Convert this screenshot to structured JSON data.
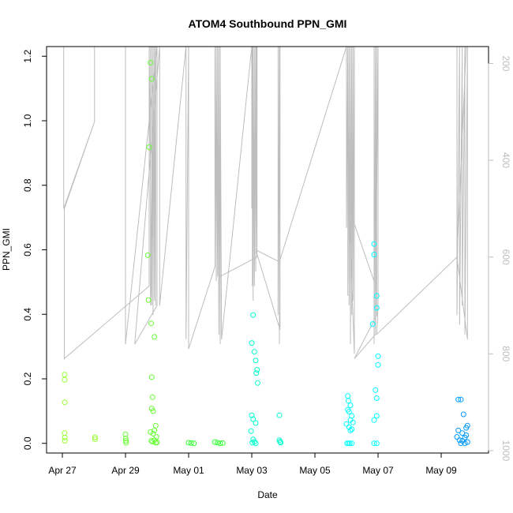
{
  "chart_data": {
    "type": "scatter",
    "title": "ATOM4 Southbound PPN_GMI",
    "xlabel": "Date",
    "ylabel": "PPN_GMI",
    "xlim": [
      "2015-04-26T12:00",
      "2015-05-10T12:00"
    ],
    "ylim": [
      -0.03,
      1.23
    ],
    "x_ticks": [
      "Apr 27",
      "Apr 29",
      "May 01",
      "May 03",
      "May 05",
      "May 07",
      "May 09"
    ],
    "x_tick_dates": [
      "2015-04-27T00:00",
      "2015-04-29T00:00",
      "2015-05-01T00:00",
      "2015-05-03T00:00",
      "2015-05-05T00:00",
      "2015-05-07T00:00",
      "2015-05-09T00:00"
    ],
    "y_ticks": [
      0.0,
      0.2,
      0.4,
      0.6,
      0.8,
      1.0,
      1.2
    ],
    "y_tick_labels": [
      "0.0",
      "0.2",
      "0.4",
      "0.6",
      "0.8",
      "1.0",
      "1.2"
    ],
    "y2_label": "",
    "y2_lim": [
      1005,
      165
    ],
    "y2_ticks": [
      200,
      400,
      600,
      800,
      1000
    ],
    "y2_tick_labels": [
      "200",
      "400",
      "600",
      "800",
      "1000"
    ],
    "grid": false,
    "colors": {
      "profile_line": "#bdbdbd",
      "series": [
        "#99ff33",
        "#66ff33",
        "#33ff33",
        "#00ff99",
        "#00ffcc",
        "#00ffff",
        "#00ccff",
        "#0099ff",
        "#0066ff"
      ]
    },
    "series": [
      {
        "color": "#99ff33",
        "points": [
          [
            "2015-04-27T01:40",
            0.213
          ],
          [
            "2015-04-27T01:45",
            0.197
          ],
          [
            "2015-04-27T01:50",
            0.127
          ],
          [
            "2015-04-27T01:40",
            0.032
          ],
          [
            "2015-04-27T01:48",
            0.018
          ],
          [
            "2015-04-27T01:55",
            0.008
          ],
          [
            "2015-04-28T00:50",
            0.019
          ],
          [
            "2015-04-28T00:55",
            0.013
          ]
        ]
      },
      {
        "color": "#66ff33",
        "points": [
          [
            "2015-04-29T00:00",
            0.028
          ],
          [
            "2015-04-29T00:10",
            0.015
          ],
          [
            "2015-04-29T00:20",
            0.008
          ],
          [
            "2015-04-29T00:25",
            0.002
          ],
          [
            "2015-04-29T19:00",
            1.18
          ],
          [
            "2015-04-29T20:00",
            1.13
          ],
          [
            "2015-04-29T18:00",
            0.918
          ],
          [
            "2015-04-29T17:00",
            0.583
          ],
          [
            "2015-04-29T17:30",
            0.444
          ],
          [
            "2015-04-29T19:30",
            0.372
          ],
          [
            "2015-04-29T22:00",
            0.33
          ],
          [
            "2015-04-29T20:00",
            0.205
          ],
          [
            "2015-04-29T20:30",
            0.143
          ],
          [
            "2015-04-29T20:00",
            0.108
          ],
          [
            "2015-04-29T21:00",
            0.1
          ],
          [
            "2015-04-29T23:00",
            0.055
          ],
          [
            "2015-04-29T22:00",
            0.04
          ],
          [
            "2015-04-29T21:00",
            0.03
          ],
          [
            "2015-04-29T23:30",
            0.02
          ],
          [
            "2015-04-29T19:00",
            0.035
          ],
          [
            "2015-04-29T19:40",
            0.008
          ],
          [
            "2015-04-29T20:30",
            0.005
          ],
          [
            "2015-04-29T22:00",
            0.01
          ],
          [
            "2015-04-29T23:00",
            0.002
          ],
          [
            "2015-04-30T00:00",
            0.003
          ]
        ]
      },
      {
        "color": "#33ff33",
        "points": [
          [
            "2015-05-01T00:00",
            0.002
          ],
          [
            "2015-05-01T02:00",
            0.001
          ],
          [
            "2015-05-01T04:00",
            0.0
          ],
          [
            "2015-05-01T20:00",
            0.004
          ],
          [
            "2015-05-01T22:00",
            0.002
          ],
          [
            "2015-05-02T00:00",
            0.0
          ],
          [
            "2015-05-02T02:00",
            0.001
          ]
        ]
      },
      {
        "color": "#00ffcc",
        "points": [
          [
            "2015-05-03T01:00",
            0.398
          ],
          [
            "2015-05-03T00:00",
            0.311
          ],
          [
            "2015-05-03T02:00",
            0.284
          ],
          [
            "2015-05-03T03:00",
            0.257
          ],
          [
            "2015-05-03T04:00",
            0.228
          ],
          [
            "2015-05-03T03:30",
            0.218
          ],
          [
            "2015-05-03T04:30",
            0.187
          ],
          [
            "2015-05-03T00:00",
            0.087
          ],
          [
            "2015-05-03T01:00",
            0.075
          ],
          [
            "2015-05-03T03:00",
            0.063
          ],
          [
            "2015-05-02T23:30",
            0.038
          ],
          [
            "2015-05-03T01:00",
            0.012
          ],
          [
            "2015-05-03T02:00",
            0.005
          ],
          [
            "2015-05-03T00:30",
            0.002
          ],
          [
            "2015-05-03T03:00",
            0.0
          ],
          [
            "2015-05-03T21:00",
            0.087
          ],
          [
            "2015-05-03T21:00",
            0.01
          ],
          [
            "2015-05-03T21:30",
            0.005
          ],
          [
            "2015-05-03T22:00",
            0.002
          ]
        ]
      },
      {
        "color": "#00ffff",
        "points": [
          [
            "2015-05-06T01:00",
            0.147
          ],
          [
            "2015-05-06T01:30",
            0.132
          ],
          [
            "2015-05-06T03:00",
            0.118
          ],
          [
            "2015-05-06T01:00",
            0.104
          ],
          [
            "2015-05-06T02:00",
            0.098
          ],
          [
            "2015-05-06T04:00",
            0.085
          ],
          [
            "2015-05-06T03:00",
            0.072
          ],
          [
            "2015-05-06T05:00",
            0.065
          ],
          [
            "2015-05-06T00:00",
            0.06
          ],
          [
            "2015-05-06T02:00",
            0.05
          ],
          [
            "2015-05-06T04:00",
            0.044
          ],
          [
            "2015-05-06T03:00",
            0.04
          ],
          [
            "2015-05-06T00:30",
            0.0
          ],
          [
            "2015-05-06T01:30",
            0.0
          ],
          [
            "2015-05-06T02:30",
            0.0
          ],
          [
            "2015-05-06T04:00",
            0.0
          ],
          [
            "2015-05-06T21:00",
            0.618
          ],
          [
            "2015-05-06T21:00",
            0.585
          ],
          [
            "2015-05-06T23:00",
            0.457
          ],
          [
            "2015-05-06T23:00",
            0.42
          ],
          [
            "2015-05-06T20:00",
            0.37
          ],
          [
            "2015-05-07T00:00",
            0.27
          ],
          [
            "2015-05-07T00:00",
            0.243
          ],
          [
            "2015-05-06T22:00",
            0.165
          ],
          [
            "2015-05-06T23:00",
            0.14
          ],
          [
            "2015-05-06T23:00",
            0.085
          ],
          [
            "2015-05-06T21:00",
            0.072
          ],
          [
            "2015-05-06T21:00",
            0.0
          ],
          [
            "2015-05-06T23:00",
            0.0
          ]
        ]
      },
      {
        "color": "#0099ff",
        "points": [
          [
            "2015-05-09T13:00",
            0.136
          ],
          [
            "2015-05-09T15:00",
            0.136
          ],
          [
            "2015-05-09T17:00",
            0.09
          ],
          [
            "2015-05-09T20:00",
            0.055
          ],
          [
            "2015-05-09T19:00",
            0.048
          ],
          [
            "2015-05-09T13:00",
            0.04
          ],
          [
            "2015-05-09T16:00",
            0.032
          ],
          [
            "2015-05-09T19:00",
            0.025
          ],
          [
            "2015-05-09T12:00",
            0.02
          ],
          [
            "2015-05-09T18:00",
            0.018
          ],
          [
            "2015-05-09T14:00",
            0.01
          ],
          [
            "2015-05-09T16:00",
            0.008
          ],
          [
            "2015-05-09T20:00",
            0.004
          ],
          [
            "2015-05-09T15:00",
            0.0
          ],
          [
            "2015-05-09T18:00",
            0.0
          ]
        ]
      }
    ],
    "profile_line": [
      [
        "2015-04-27T01:00",
        165
      ],
      [
        "2015-04-27T01:00",
        500
      ],
      [
        "2015-04-28T00:30",
        320
      ],
      [
        "2015-04-28T00:30",
        165
      ],
      [
        "2015-04-28T00:30",
        320
      ],
      [
        "2015-04-27T01:30",
        500
      ],
      [
        "2015-04-27T01:30",
        810
      ],
      [
        "2015-04-29T18:00",
        660
      ],
      [
        "2015-04-29T18:00",
        165
      ],
      [
        "2015-04-29T20:00",
        700
      ],
      [
        "2015-04-29T20:00",
        165
      ],
      [
        "2015-04-29T21:00",
        720
      ],
      [
        "2015-04-29T21:00",
        165
      ],
      [
        "2015-04-29T22:00",
        690
      ],
      [
        "2015-04-29T22:00",
        165
      ],
      [
        "2015-04-29T23:00",
        700
      ],
      [
        "2015-04-29T23:00",
        165
      ],
      [
        "2015-04-29T19:00",
        700
      ],
      [
        "2015-04-29T19:00",
        165
      ],
      [
        "2015-04-29T00:00",
        165
      ],
      [
        "2015-04-29T00:00",
        780
      ],
      [
        "2015-04-30T00:00",
        165
      ],
      [
        "2015-04-30T00:00",
        700
      ],
      [
        "2015-04-29T07:00",
        780
      ],
      [
        "2015-04-30T02:00",
        165
      ],
      [
        "2015-04-30T02:00",
        700
      ],
      [
        "2015-04-30T22:00",
        165
      ],
      [
        "2015-04-30T22:00",
        770
      ],
      [
        "2015-05-01T00:00",
        165
      ],
      [
        "2015-05-01T00:00",
        790
      ],
      [
        "2015-05-01T20:00",
        620
      ],
      [
        "2015-05-01T20:00",
        165
      ],
      [
        "2015-05-01T21:00",
        650
      ],
      [
        "2015-05-01T21:00",
        165
      ],
      [
        "2015-05-01T22:00",
        640
      ],
      [
        "2015-05-01T22:00",
        165
      ],
      [
        "2015-05-01T23:00",
        760
      ],
      [
        "2015-05-01T23:00",
        165
      ],
      [
        "2015-05-02T00:00",
        780
      ],
      [
        "2015-05-02T00:00",
        165
      ],
      [
        "2015-05-02T01:00",
        770
      ],
      [
        "2015-05-03T00:00",
        165
      ],
      [
        "2015-05-03T00:00",
        500
      ],
      [
        "2015-05-03T00:30",
        165
      ],
      [
        "2015-05-03T00:30",
        660
      ],
      [
        "2015-05-03T01:00",
        165
      ],
      [
        "2015-05-03T01:00",
        690
      ],
      [
        "2015-05-03T02:00",
        165
      ],
      [
        "2015-05-03T02:00",
        660
      ],
      [
        "2015-05-03T03:00",
        165
      ],
      [
        "2015-05-03T03:00",
        630
      ],
      [
        "2015-05-03T04:00",
        165
      ],
      [
        "2015-05-03T04:00",
        600
      ],
      [
        "2015-05-02T00:00",
        640
      ],
      [
        "2015-05-03T04:00",
        600
      ],
      [
        "2015-05-03T03:30",
        165
      ],
      [
        "2015-05-03T20:00",
        165
      ],
      [
        "2015-05-03T20:00",
        720
      ],
      [
        "2015-05-03T21:00",
        165
      ],
      [
        "2015-05-03T21:00",
        780
      ],
      [
        "2015-05-03T21:30",
        165
      ],
      [
        "2015-05-03T21:30",
        750
      ],
      [
        "2015-05-03T03:00",
        585
      ],
      [
        "2015-05-03T21:00",
        610
      ],
      [
        "2015-05-06T00:00",
        165
      ],
      [
        "2015-05-06T00:00",
        540
      ],
      [
        "2015-05-06T01:00",
        165
      ],
      [
        "2015-05-06T01:00",
        680
      ],
      [
        "2015-05-06T02:00",
        165
      ],
      [
        "2015-05-06T02:00",
        700
      ],
      [
        "2015-05-06T03:00",
        165
      ],
      [
        "2015-05-06T03:00",
        780
      ],
      [
        "2015-05-06T04:00",
        165
      ],
      [
        "2015-05-06T04:00",
        720
      ],
      [
        "2015-05-06T05:00",
        165
      ],
      [
        "2015-05-06T05:00",
        690
      ],
      [
        "2015-05-06T06:00",
        165
      ],
      [
        "2015-05-06T06:00",
        800
      ],
      [
        "2015-05-06T02:00",
        500
      ],
      [
        "2015-05-06T21:00",
        650
      ],
      [
        "2015-05-06T21:00",
        165
      ],
      [
        "2015-05-06T21:00",
        780
      ],
      [
        "2015-05-06T22:00",
        165
      ],
      [
        "2015-05-06T22:00",
        750
      ],
      [
        "2015-05-06T23:00",
        165
      ],
      [
        "2015-05-06T23:00",
        720
      ],
      [
        "2015-05-06T06:00",
        810
      ],
      [
        "2015-05-06T22:00",
        760
      ],
      [
        "2015-05-07T00:00",
        165
      ],
      [
        "2015-05-07T00:00",
        700
      ],
      [
        "2015-05-06T23:00",
        760
      ],
      [
        "2015-05-09T12:00",
        600
      ],
      [
        "2015-05-09T12:00",
        165
      ],
      [
        "2015-05-09T12:00",
        720
      ],
      [
        "2015-05-09T14:00",
        165
      ],
      [
        "2015-05-09T14:00",
        740
      ],
      [
        "2015-05-09T16:00",
        165
      ],
      [
        "2015-05-09T16:00",
        700
      ],
      [
        "2015-05-09T18:00",
        165
      ],
      [
        "2015-05-09T18:00",
        760
      ],
      [
        "2015-05-09T20:00",
        165
      ],
      [
        "2015-05-09T20:00",
        770
      ],
      [
        "2015-05-09T12:00",
        600
      ],
      [
        "2015-05-09T19:00",
        165
      ]
    ]
  }
}
